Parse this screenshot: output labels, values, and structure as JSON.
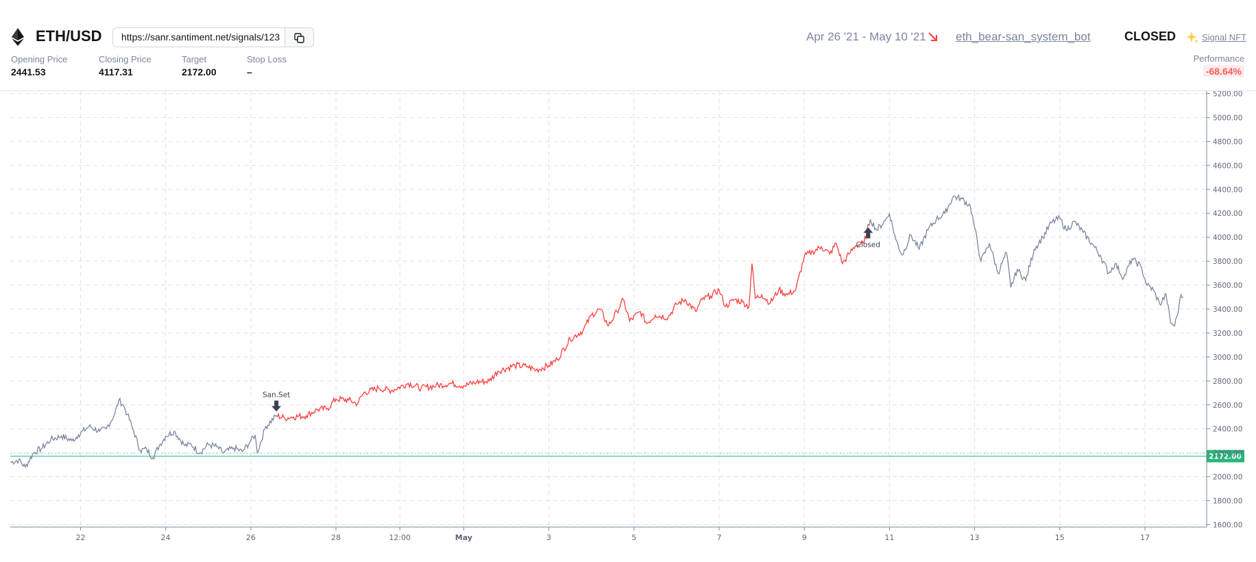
{
  "header": {
    "pair": "ETH/USD",
    "signal_url": "https://sanr.santiment.net/signals/123",
    "stats": [
      {
        "label": "Opening Price",
        "value": "2441.53"
      },
      {
        "label": "Closing Price",
        "value": "4117.31"
      },
      {
        "label": "Target",
        "value": "2172.00"
      },
      {
        "label": "Stop Loss",
        "value": "–"
      }
    ],
    "period": "Apr 26 '21 - May 10 '21",
    "bot_name": "eth_bear-san_system_bot",
    "status": "CLOSED",
    "nft_label": "Signal NFT",
    "performance_label": "Performance",
    "performance_value": "-68.64%"
  },
  "colors": {
    "signal_line": "#ff3b3b",
    "price_line": "#7a859e",
    "target_line": "#26b57a",
    "target_badge": "#26b57a",
    "performance_negative": "#ff5b5b",
    "trend_arrow": "#ff3b3b",
    "sparkle": "#ffcb47"
  },
  "icons": {
    "pair": "ethereum-icon",
    "copy": "copy-icon",
    "trend": "arrow-down-right-icon",
    "nft": "sparkle-icon"
  },
  "chart_data": {
    "type": "line",
    "x_ticks": [
      {
        "day": 22,
        "label": "22"
      },
      {
        "day": 24,
        "label": "24"
      },
      {
        "day": 26,
        "label": "26"
      },
      {
        "day": 28,
        "label": "28"
      },
      {
        "day": 29.5,
        "label": "12:00"
      },
      {
        "day": 31,
        "label": "May"
      },
      {
        "day": 33,
        "label": "3"
      },
      {
        "day": 35,
        "label": "5"
      },
      {
        "day": 37,
        "label": "7"
      },
      {
        "day": 39,
        "label": "9"
      },
      {
        "day": 41,
        "label": "11"
      },
      {
        "day": 43,
        "label": "13"
      },
      {
        "day": 45,
        "label": "15"
      },
      {
        "day": 47,
        "label": "17"
      }
    ],
    "x_range": [
      20.35,
      48.45
    ],
    "ylim": [
      1580,
      5220
    ],
    "y_ticks": [
      1600,
      1800,
      2000,
      2200,
      2400,
      2600,
      2800,
      3000,
      3200,
      3400,
      3600,
      3800,
      4000,
      4200,
      4400,
      4600,
      4800,
      5000,
      5200
    ],
    "y_tick_labels": [
      "1600.00",
      "1800.00",
      "2000.00",
      "2200.00",
      "2400.00",
      "2600.00",
      "2800.00",
      "3000.00",
      "3200.00",
      "3400.00",
      "3600.00",
      "3800.00",
      "4000.00",
      "4200.00",
      "4400.00",
      "4600.00",
      "4800.00",
      "5000.00",
      "5200.00"
    ],
    "grid": true,
    "target_line": {
      "value": 2172,
      "label": "2172.00"
    },
    "signal_window": {
      "start_day": 26.6,
      "end_day": 40.5
    },
    "series": [
      {
        "points": [
          [
            20.35,
            2120
          ],
          [
            20.55,
            2140
          ],
          [
            20.7,
            2080
          ],
          [
            20.9,
            2200
          ],
          [
            21.1,
            2240
          ],
          [
            21.3,
            2310
          ],
          [
            21.55,
            2340
          ],
          [
            21.8,
            2300
          ],
          [
            21.95,
            2350
          ],
          [
            22.2,
            2420
          ],
          [
            22.45,
            2380
          ],
          [
            22.6,
            2400
          ],
          [
            22.8,
            2520
          ],
          [
            22.9,
            2640
          ],
          [
            23.0,
            2600
          ],
          [
            23.1,
            2520
          ],
          [
            23.25,
            2380
          ],
          [
            23.4,
            2220
          ],
          [
            23.55,
            2230
          ],
          [
            23.7,
            2160
          ],
          [
            23.85,
            2260
          ],
          [
            24.0,
            2340
          ],
          [
            24.2,
            2380
          ],
          [
            24.45,
            2260
          ],
          [
            24.6,
            2270
          ],
          [
            24.8,
            2200
          ],
          [
            25.0,
            2270
          ],
          [
            25.2,
            2250
          ],
          [
            25.35,
            2200
          ],
          [
            25.6,
            2240
          ],
          [
            25.8,
            2210
          ],
          [
            26.0,
            2300
          ],
          [
            26.1,
            2350
          ],
          [
            26.15,
            2200
          ],
          [
            26.35,
            2420
          ],
          [
            26.6,
            2510
          ],
          [
            26.8,
            2490
          ],
          [
            27.0,
            2500
          ],
          [
            27.3,
            2510
          ],
          [
            27.55,
            2560
          ],
          [
            27.8,
            2570
          ],
          [
            28.0,
            2650
          ],
          [
            28.3,
            2640
          ],
          [
            28.5,
            2610
          ],
          [
            28.65,
            2700
          ],
          [
            29.0,
            2740
          ],
          [
            29.3,
            2720
          ],
          [
            29.7,
            2780
          ],
          [
            30.0,
            2740
          ],
          [
            30.35,
            2760
          ],
          [
            30.7,
            2780
          ],
          [
            31.0,
            2760
          ],
          [
            31.3,
            2790
          ],
          [
            31.6,
            2800
          ],
          [
            31.8,
            2880
          ],
          [
            32.2,
            2930
          ],
          [
            32.5,
            2920
          ],
          [
            32.7,
            2890
          ],
          [
            33.0,
            2930
          ],
          [
            33.2,
            2980
          ],
          [
            33.5,
            3150
          ],
          [
            33.8,
            3220
          ],
          [
            34.0,
            3350
          ],
          [
            34.2,
            3400
          ],
          [
            34.4,
            3260
          ],
          [
            34.6,
            3380
          ],
          [
            34.75,
            3480
          ],
          [
            34.9,
            3300
          ],
          [
            35.15,
            3380
          ],
          [
            35.3,
            3280
          ],
          [
            35.5,
            3350
          ],
          [
            35.8,
            3330
          ],
          [
            36.0,
            3440
          ],
          [
            36.2,
            3480
          ],
          [
            36.45,
            3380
          ],
          [
            36.6,
            3480
          ],
          [
            36.8,
            3510
          ],
          [
            37.0,
            3560
          ],
          [
            37.15,
            3420
          ],
          [
            37.35,
            3480
          ],
          [
            37.55,
            3460
          ],
          [
            37.7,
            3420
          ],
          [
            37.77,
            3780
          ],
          [
            37.85,
            3490
          ],
          [
            38.0,
            3520
          ],
          [
            38.2,
            3450
          ],
          [
            38.4,
            3560
          ],
          [
            38.6,
            3520
          ],
          [
            38.8,
            3560
          ],
          [
            39.0,
            3840
          ],
          [
            39.2,
            3880
          ],
          [
            39.4,
            3920
          ],
          [
            39.6,
            3860
          ],
          [
            39.75,
            3950
          ],
          [
            39.9,
            3780
          ],
          [
            40.05,
            3860
          ],
          [
            40.2,
            3930
          ],
          [
            40.4,
            3950
          ],
          [
            40.55,
            4150
          ],
          [
            40.7,
            4060
          ],
          [
            40.9,
            4140
          ],
          [
            41.0,
            4200
          ],
          [
            41.15,
            3980
          ],
          [
            41.3,
            3850
          ],
          [
            41.5,
            4020
          ],
          [
            41.7,
            3900
          ],
          [
            41.9,
            4060
          ],
          [
            42.1,
            4150
          ],
          [
            42.3,
            4200
          ],
          [
            42.5,
            4340
          ],
          [
            42.7,
            4320
          ],
          [
            42.9,
            4260
          ],
          [
            43.0,
            4080
          ],
          [
            43.15,
            3800
          ],
          [
            43.35,
            3950
          ],
          [
            43.55,
            3700
          ],
          [
            43.75,
            3870
          ],
          [
            43.85,
            3580
          ],
          [
            44.0,
            3730
          ],
          [
            44.2,
            3640
          ],
          [
            44.4,
            3900
          ],
          [
            44.6,
            4000
          ],
          [
            44.8,
            4120
          ],
          [
            45.0,
            4160
          ],
          [
            45.15,
            4060
          ],
          [
            45.35,
            4130
          ],
          [
            45.55,
            4040
          ],
          [
            45.75,
            3950
          ],
          [
            45.95,
            3850
          ],
          [
            46.15,
            3700
          ],
          [
            46.3,
            3780
          ],
          [
            46.5,
            3660
          ],
          [
            46.7,
            3820
          ],
          [
            46.9,
            3760
          ],
          [
            47.05,
            3600
          ],
          [
            47.2,
            3560
          ],
          [
            47.35,
            3440
          ],
          [
            47.5,
            3520
          ],
          [
            47.6,
            3290
          ],
          [
            47.7,
            3260
          ],
          [
            47.8,
            3420
          ],
          [
            47.85,
            3520
          ],
          [
            47.9,
            3500
          ]
        ]
      }
    ],
    "markers": [
      {
        "label": "San.Set",
        "day": 26.6,
        "value": 2510,
        "direction": "down"
      },
      {
        "label": "Closed",
        "day": 40.5,
        "value": 4117,
        "direction": "up"
      }
    ]
  }
}
